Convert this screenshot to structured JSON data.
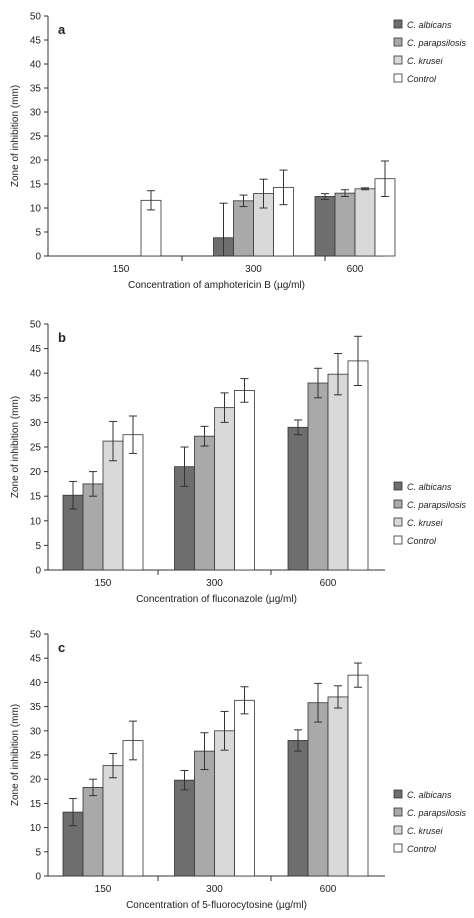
{
  "chart_data": [
    {
      "type": "bar",
      "panel_label": "a",
      "xlabel": "Concentration of amphotericin B (µg/ml)",
      "ylabel": "Zone of inhibition (mm)",
      "categories": [
        "150",
        "300",
        "600"
      ],
      "ylim": [
        0,
        50
      ],
      "yticks": [
        0,
        5,
        10,
        15,
        20,
        25,
        30,
        35,
        40,
        45,
        50
      ],
      "grid": false,
      "legend_position": "top-right",
      "series": [
        {
          "name": "C. albicans",
          "values": [
            0,
            3.8,
            12.4
          ],
          "errors": [
            0,
            7.2,
            0.6
          ]
        },
        {
          "name": "C. parapsilosis",
          "values": [
            0,
            11.5,
            13.1
          ],
          "errors": [
            0,
            1.2,
            0.7
          ]
        },
        {
          "name": "C. krusei",
          "values": [
            0,
            13.0,
            14.0
          ],
          "errors": [
            0,
            3.0,
            0.2
          ]
        },
        {
          "name": "Control",
          "values": [
            11.6,
            14.3,
            16.1
          ],
          "errors": [
            2.0,
            3.6,
            3.7
          ]
        }
      ]
    },
    {
      "type": "bar",
      "panel_label": "b",
      "xlabel": "Concentration of fluconazole (µg/ml)",
      "ylabel": "Zone of inhibition (mm)",
      "categories": [
        "150",
        "300",
        "600"
      ],
      "ylim": [
        0,
        50
      ],
      "yticks": [
        0,
        5,
        10,
        15,
        20,
        25,
        30,
        35,
        40,
        45,
        50
      ],
      "grid": false,
      "legend_position": "bottom-right",
      "series": [
        {
          "name": "C. albicans",
          "values": [
            15.2,
            21.0,
            29.0
          ],
          "errors": [
            2.8,
            4.0,
            1.5
          ]
        },
        {
          "name": "C. parapsilosis",
          "values": [
            17.5,
            27.2,
            38.0
          ],
          "errors": [
            2.5,
            2.0,
            3.0
          ]
        },
        {
          "name": "C. krusei",
          "values": [
            26.2,
            33.0,
            39.8
          ],
          "errors": [
            4.0,
            3.0,
            4.2
          ]
        },
        {
          "name": "Control",
          "values": [
            27.5,
            36.5,
            42.5
          ],
          "errors": [
            3.8,
            2.4,
            5.0
          ]
        }
      ]
    },
    {
      "type": "bar",
      "panel_label": "c",
      "xlabel": "Concentration of 5-fluorocytosine (µg/ml)",
      "ylabel": "Zone of inhibition (mm)",
      "categories": [
        "150",
        "300",
        "600"
      ],
      "ylim": [
        0,
        50
      ],
      "yticks": [
        0,
        5,
        10,
        15,
        20,
        25,
        30,
        35,
        40,
        45,
        50
      ],
      "grid": false,
      "legend_position": "bottom-right",
      "series": [
        {
          "name": "C. albicans",
          "values": [
            13.2,
            19.8,
            28.0
          ],
          "errors": [
            2.8,
            2.0,
            2.2
          ]
        },
        {
          "name": "C. parapsilosis",
          "values": [
            18.3,
            25.8,
            35.8
          ],
          "errors": [
            1.7,
            3.8,
            4.0
          ]
        },
        {
          "name": "C. krusei",
          "values": [
            22.8,
            30.0,
            37.0
          ],
          "errors": [
            2.5,
            4.0,
            2.3
          ]
        },
        {
          "name": "Control",
          "values": [
            28.0,
            36.3,
            41.5
          ],
          "errors": [
            4.0,
            2.8,
            2.5
          ]
        }
      ]
    }
  ],
  "colors": {
    "C. albicans": "#6e6e6e",
    "C. parapsilosis": "#a9a9a9",
    "C. krusei": "#d9d9d9",
    "Control": "#ffffff",
    "axis": "#333333"
  }
}
